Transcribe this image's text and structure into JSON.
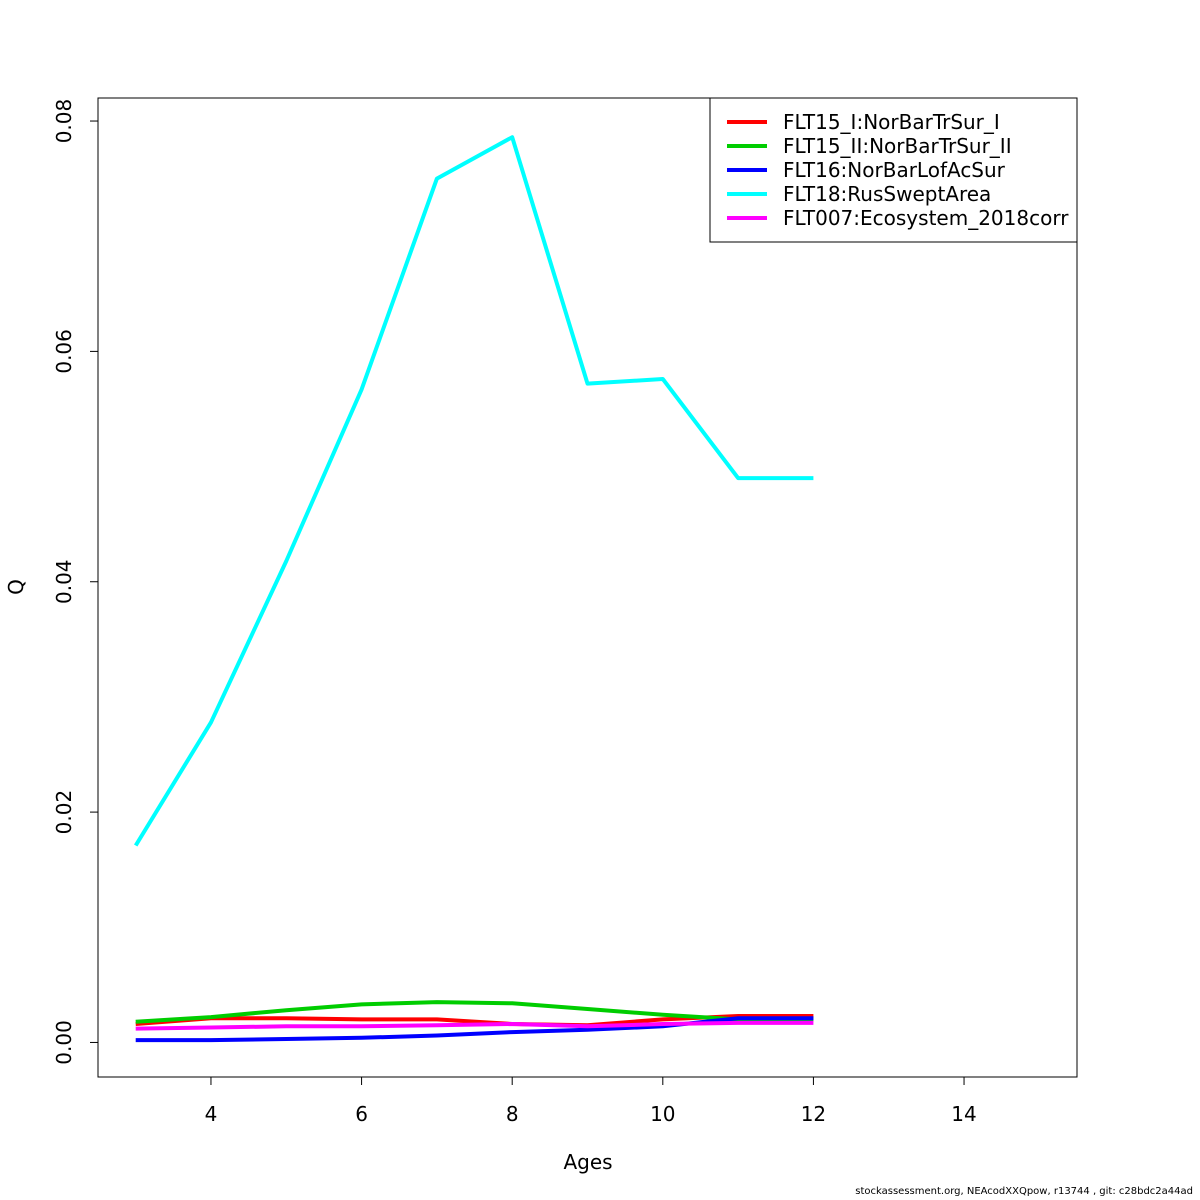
{
  "chart_data": {
    "type": "line",
    "title": "",
    "xlabel": "Ages",
    "ylabel": "Q",
    "xlim": [
      2.5,
      15.5
    ],
    "ylim": [
      -0.003,
      0.082
    ],
    "x_ticks": [
      4,
      6,
      8,
      10,
      12,
      14
    ],
    "x_tick_labels": [
      "4",
      "6",
      "8",
      "10",
      "12",
      "14"
    ],
    "y_ticks": [
      0.0,
      0.02,
      0.04,
      0.06,
      0.08
    ],
    "y_tick_labels": [
      "0.00",
      "0.02",
      "0.04",
      "0.06",
      "0.08"
    ],
    "grid": false,
    "legend_position": "top-right",
    "x": [
      3,
      4,
      5,
      6,
      7,
      8,
      9,
      10,
      11,
      12
    ],
    "series": [
      {
        "name": "FLT15_I:NorBarTrSur_I",
        "color": "#ff0000",
        "values": [
          0.0016,
          0.0021,
          0.0021,
          0.002,
          0.002,
          0.0016,
          0.0015,
          0.002,
          0.0023,
          0.0023
        ]
      },
      {
        "name": "FLT15_II:NorBarTrSur_II",
        "color": "#00cd00",
        "values": [
          0.0018,
          0.0022,
          0.0028,
          0.0033,
          0.0035,
          0.0034,
          0.0029,
          0.0024,
          0.002,
          0.002
        ]
      },
      {
        "name": "FLT16:NorBarLofAcSur",
        "color": "#0000ff",
        "values": [
          0.0002,
          0.0002,
          0.0003,
          0.0004,
          0.0006,
          0.0009,
          0.0011,
          0.0014,
          0.0021,
          0.0021
        ]
      },
      {
        "name": "FLT18:RusSweptArea",
        "color": "#00ffff",
        "values": [
          0.0171,
          0.0278,
          0.0418,
          0.0567,
          0.075,
          0.0786,
          0.0572,
          0.0576,
          0.049,
          0.049
        ]
      },
      {
        "name": "FLT007:Ecosystem_2018corr",
        "color": "#ff00ff",
        "values": [
          0.0012,
          0.0013,
          0.0014,
          0.0014,
          0.0015,
          0.0016,
          0.0014,
          0.0016,
          0.0017,
          0.0017
        ]
      }
    ]
  },
  "footer": "stockassessment.org, NEAcodXXQpow, r13744 , git: c28bdc2a44ad"
}
